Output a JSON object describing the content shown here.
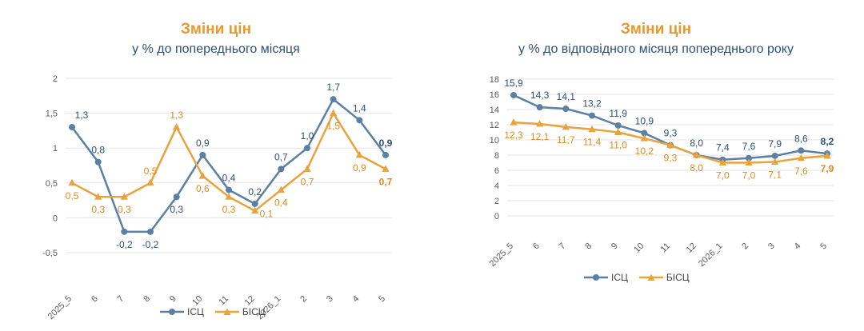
{
  "colors": {
    "title": "#E6992C",
    "subtitle": "#2E4F7A",
    "isc": "#5B80A4",
    "bisc": "#E8A33D",
    "isc_label": "#2E4F7A",
    "bisc_label": "#E08A1E",
    "grid": "#e6e6e6",
    "axis_text": "#595959"
  },
  "chart_data": [
    {
      "type": "line",
      "title": "Зміни цін",
      "subtitle": "у % до попереднього місяця",
      "categories": [
        "2025_5",
        "6",
        "7",
        "8",
        "9",
        "10",
        "11",
        "12",
        "2026_1",
        "2",
        "3",
        "4",
        "5"
      ],
      "ylim": [
        -0.5,
        2
      ],
      "yticks": [
        -0.5,
        0,
        0.5,
        1,
        1.5,
        2
      ],
      "ytick_labels": [
        "-0,5",
        "0",
        "0,5",
        "1",
        "1,5",
        "2"
      ],
      "grid": true,
      "legend_position": "bottom",
      "series": [
        {
          "name": "ІСЦ",
          "values": [
            1.3,
            0.8,
            -0.2,
            -0.2,
            0.3,
            0.9,
            0.4,
            0.2,
            0.7,
            1.0,
            1.7,
            1.4,
            0.9
          ],
          "labels": [
            "1,3",
            "0,8",
            "-0,2",
            "-0,2",
            "0,3",
            "0,9",
            "0,4",
            "0,2",
            "0,7",
            "1,0",
            "1,7",
            "1,4",
            "0,9"
          ]
        },
        {
          "name": "БІСЦ",
          "values": [
            0.5,
            0.3,
            0.3,
            0.5,
            1.3,
            0.6,
            0.3,
            0.1,
            0.4,
            0.7,
            1.5,
            0.9,
            0.7
          ],
          "labels": [
            "0,5",
            "0,3",
            "0,3",
            "0,5",
            "1,3",
            "0,6",
            "0,3",
            "0,1",
            "0,4",
            "0,7",
            "1,5",
            "0,9",
            "0,7"
          ]
        }
      ]
    },
    {
      "type": "line",
      "title": "Зміни цін",
      "subtitle": "у % до відповідного місяця попереднього року",
      "categories": [
        "2025_5",
        "6",
        "7",
        "8",
        "9",
        "10",
        "11",
        "12",
        "2026_1",
        "2",
        "3",
        "4",
        "5"
      ],
      "ylim": [
        0,
        18
      ],
      "yticks": [
        0,
        2,
        4,
        6,
        8,
        10,
        12,
        14,
        16,
        18
      ],
      "ytick_labels": [
        "0",
        "2",
        "4",
        "6",
        "8",
        "10",
        "12",
        "14",
        "16",
        "18"
      ],
      "grid": true,
      "legend_position": "bottom",
      "series": [
        {
          "name": "ІСЦ",
          "values": [
            15.9,
            14.3,
            14.1,
            13.2,
            11.9,
            10.9,
            9.3,
            8.0,
            7.4,
            7.6,
            7.9,
            8.6,
            8.2
          ],
          "labels": [
            "15,9",
            "14,3",
            "14,1",
            "13,2",
            "11,9",
            "10,9",
            "9,3",
            "8,0",
            "7,4",
            "7,6",
            "7,9",
            "8,6",
            "8,2"
          ]
        },
        {
          "name": "БІСЦ",
          "values": [
            12.3,
            12.1,
            11.7,
            11.4,
            11.0,
            10.2,
            9.3,
            8.0,
            7.0,
            7.0,
            7.1,
            7.6,
            7.9
          ],
          "labels": [
            "12,3",
            "12,1",
            "11,7",
            "11,4",
            "11,0",
            "10,2",
            "9,3",
            "8,0",
            "7,0",
            "7,0",
            "7,1",
            "7,6",
            "7,9"
          ]
        }
      ]
    }
  ]
}
